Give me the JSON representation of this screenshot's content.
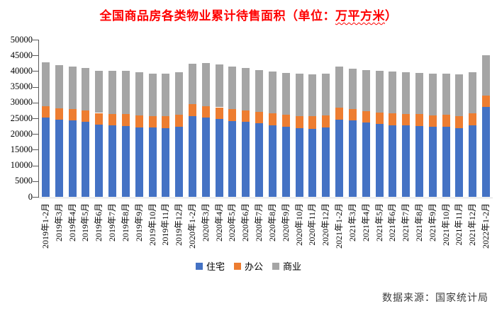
{
  "title": {
    "prefix": "全国商品房各类物业累计待售面积（单位：",
    "unit": "万平方米",
    "suffix": "）",
    "color": "#ff0000"
  },
  "source": "数据来源：国家统计局",
  "chart_data": {
    "type": "bar",
    "stacked": true,
    "title": "全国商品房各类物业累计待售面积（单位：万平方米）",
    "unit": "万平方米",
    "grid": false,
    "legend_position": "bottom",
    "ylim": [
      0,
      50000
    ],
    "ytick_step": 5000,
    "y_ticks": [
      0,
      5000,
      10000,
      15000,
      20000,
      25000,
      30000,
      35000,
      40000,
      45000,
      50000
    ],
    "categories": [
      "2019年1-2月",
      "2019年3月",
      "2019年4月",
      "2019年5月",
      "2019年6月",
      "2019年7月",
      "2019年8月",
      "2019年9月",
      "2019年10月",
      "2019年11月",
      "2019年12月",
      "2020年1-2月",
      "2020年3月",
      "2020年4月",
      "2020年5月",
      "2020年6月",
      "2020年7月",
      "2020年8月",
      "2020年9月",
      "2020年10月",
      "2020年11月",
      "2020年12月",
      "2021年1-2月",
      "2021年3月",
      "2021年4月",
      "2021年5月",
      "2021年6月",
      "2021年7月",
      "2021年8月",
      "2021年9月",
      "2021年10月",
      "2021年11月",
      "2021年12月",
      "2022年1-2月"
    ],
    "series": [
      {
        "name": "住宅",
        "id": "residential",
        "color": "#4472C4",
        "values": [
          25200,
          24500,
          24300,
          23900,
          23000,
          22650,
          22600,
          22150,
          22000,
          21850,
          22350,
          25700,
          25200,
          24700,
          24150,
          23800,
          23350,
          22700,
          22300,
          21900,
          21700,
          22050,
          24600,
          24300,
          23550,
          23200,
          22800,
          22650,
          22450,
          22200,
          22350,
          21900,
          22800,
          28600
        ]
      },
      {
        "name": "办公",
        "id": "office",
        "color": "#ED7D31",
        "values": [
          3600,
          3600,
          3600,
          3550,
          3700,
          3750,
          3750,
          3800,
          3750,
          3850,
          3700,
          3900,
          3700,
          3800,
          3800,
          3650,
          3750,
          3800,
          3850,
          3850,
          3900,
          3900,
          3800,
          3600,
          3700,
          3700,
          3800,
          3800,
          3850,
          3800,
          3700,
          3850,
          3750,
          3550
        ]
      },
      {
        "name": "商业",
        "id": "commercial",
        "color": "#A5A5A5",
        "values": [
          13900,
          13700,
          13650,
          13500,
          13500,
          13650,
          13700,
          13650,
          13550,
          13600,
          13600,
          12850,
          13600,
          13550,
          13450,
          13500,
          13300,
          13400,
          13300,
          13400,
          13300,
          13200,
          13000,
          12900,
          13000,
          13150,
          13300,
          13200,
          13150,
          13100,
          13250,
          13250,
          13000,
          12900
        ]
      }
    ]
  }
}
